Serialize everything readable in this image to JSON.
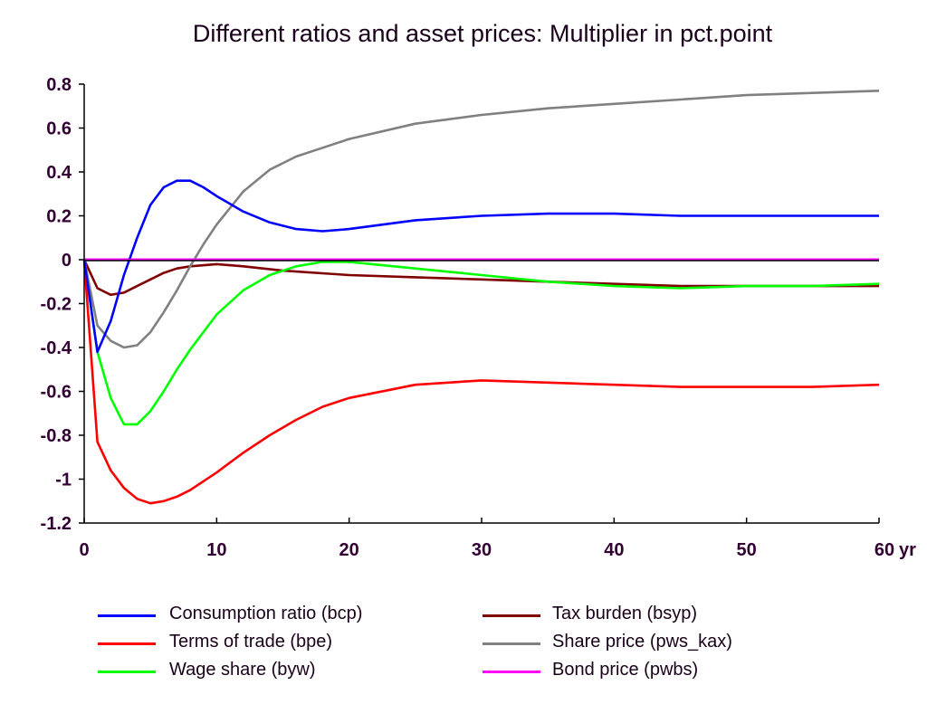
{
  "chart_data": {
    "type": "line",
    "title": "Different ratios and asset prices: Multiplier in pct.point",
    "xlabel": "yr",
    "ylabel": "",
    "xlim": [
      0,
      60
    ],
    "ylim": [
      -1.2,
      0.8
    ],
    "xticks": [
      0,
      10,
      20,
      30,
      40,
      50,
      60
    ],
    "xtick_labels": [
      "0",
      "10",
      "20",
      "30",
      "40",
      "50",
      "60"
    ],
    "yticks": [
      0.8,
      0.6,
      0.4,
      0.2,
      0,
      -0.2,
      -0.4,
      -0.6,
      -0.8,
      -1,
      -1.2
    ],
    "ytick_labels": [
      "0.8",
      "0.6",
      "0.4",
      "0.2",
      "0",
      "-0.2",
      "-0.4",
      "-0.6",
      "-0.8",
      "-1",
      "-1.2"
    ],
    "grid": false,
    "zero_line": true,
    "legend_placement": "bottom",
    "series": [
      {
        "name": "Consumption ratio (bcp)",
        "color": "#0000ff",
        "x": [
          0,
          1,
          2,
          3,
          4,
          5,
          6,
          7,
          8,
          9,
          10,
          12,
          14,
          16,
          18,
          20,
          25,
          30,
          35,
          40,
          45,
          50,
          55,
          60
        ],
        "y": [
          0,
          -0.42,
          -0.28,
          -0.07,
          0.1,
          0.25,
          0.33,
          0.36,
          0.36,
          0.33,
          0.29,
          0.22,
          0.17,
          0.14,
          0.13,
          0.14,
          0.18,
          0.2,
          0.21,
          0.21,
          0.2,
          0.2,
          0.2,
          0.2
        ]
      },
      {
        "name": "Terms of trade (bpe)",
        "color": "#ff0000",
        "x": [
          0,
          1,
          2,
          3,
          4,
          5,
          6,
          7,
          8,
          10,
          12,
          14,
          16,
          18,
          20,
          25,
          30,
          35,
          40,
          45,
          50,
          55,
          60
        ],
        "y": [
          0,
          -0.83,
          -0.96,
          -1.04,
          -1.09,
          -1.11,
          -1.1,
          -1.08,
          -1.05,
          -0.97,
          -0.88,
          -0.8,
          -0.73,
          -0.67,
          -0.63,
          -0.57,
          -0.55,
          -0.56,
          -0.57,
          -0.58,
          -0.58,
          -0.58,
          -0.57
        ]
      },
      {
        "name": "Wage share (byw)",
        "color": "#00ff00",
        "x": [
          0,
          1,
          2,
          3,
          4,
          5,
          6,
          7,
          8,
          10,
          12,
          14,
          16,
          18,
          20,
          25,
          30,
          35,
          40,
          45,
          50,
          55,
          60
        ],
        "y": [
          0,
          -0.42,
          -0.63,
          -0.75,
          -0.75,
          -0.69,
          -0.6,
          -0.5,
          -0.41,
          -0.25,
          -0.14,
          -0.07,
          -0.03,
          -0.01,
          -0.01,
          -0.04,
          -0.07,
          -0.1,
          -0.12,
          -0.13,
          -0.12,
          -0.12,
          -0.11
        ]
      },
      {
        "name": "Tax burden (bsyp)",
        "color": "#800000",
        "x": [
          0,
          1,
          2,
          3,
          4,
          5,
          6,
          7,
          8,
          10,
          12,
          15,
          20,
          25,
          30,
          35,
          40,
          45,
          50,
          55,
          60
        ],
        "y": [
          0,
          -0.13,
          -0.16,
          -0.15,
          -0.12,
          -0.09,
          -0.06,
          -0.04,
          -0.03,
          -0.02,
          -0.03,
          -0.05,
          -0.07,
          -0.08,
          -0.09,
          -0.1,
          -0.11,
          -0.12,
          -0.12,
          -0.12,
          -0.12
        ]
      },
      {
        "name": "Share price (pws_kax)",
        "color": "#808080",
        "x": [
          0,
          1,
          2,
          3,
          4,
          5,
          6,
          7,
          8,
          9,
          10,
          12,
          14,
          16,
          18,
          20,
          25,
          30,
          35,
          40,
          45,
          50,
          55,
          60
        ],
        "y": [
          0,
          -0.3,
          -0.37,
          -0.4,
          -0.39,
          -0.33,
          -0.24,
          -0.14,
          -0.03,
          0.07,
          0.16,
          0.31,
          0.41,
          0.47,
          0.51,
          0.55,
          0.62,
          0.66,
          0.69,
          0.71,
          0.73,
          0.75,
          0.76,
          0.77
        ]
      },
      {
        "name": "Bond price (pwbs)",
        "color": "#ff00ff",
        "x": [
          0,
          60
        ],
        "y": [
          0,
          0
        ]
      }
    ]
  }
}
